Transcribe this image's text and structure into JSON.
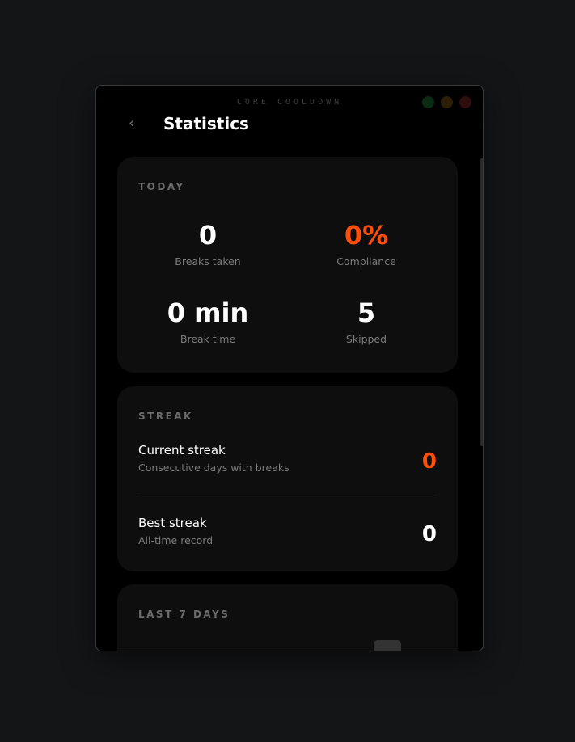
{
  "window": {
    "app_title": "CORE COOLDOWN",
    "traffic_colors": [
      "#0b2a12",
      "#2d1e07",
      "#2e0d0d"
    ]
  },
  "header": {
    "title": "Statistics",
    "back_icon": "chevron-left-icon"
  },
  "today": {
    "label": "TODAY",
    "stats": [
      {
        "value": "0",
        "caption": "Breaks taken"
      },
      {
        "value": "0%",
        "caption": "Compliance"
      },
      {
        "value": "0 min",
        "caption": "Break time"
      },
      {
        "value": "5",
        "caption": "Skipped"
      }
    ]
  },
  "streak": {
    "label": "STREAK",
    "items": [
      {
        "title": "Current streak",
        "desc": "Consecutive days with breaks",
        "value": "0"
      },
      {
        "title": "Best streak",
        "desc": "All-time record",
        "value": "0"
      }
    ]
  },
  "last7": {
    "label": "LAST 7 DAYS"
  },
  "colors": {
    "accent": "#ff4d0a"
  }
}
